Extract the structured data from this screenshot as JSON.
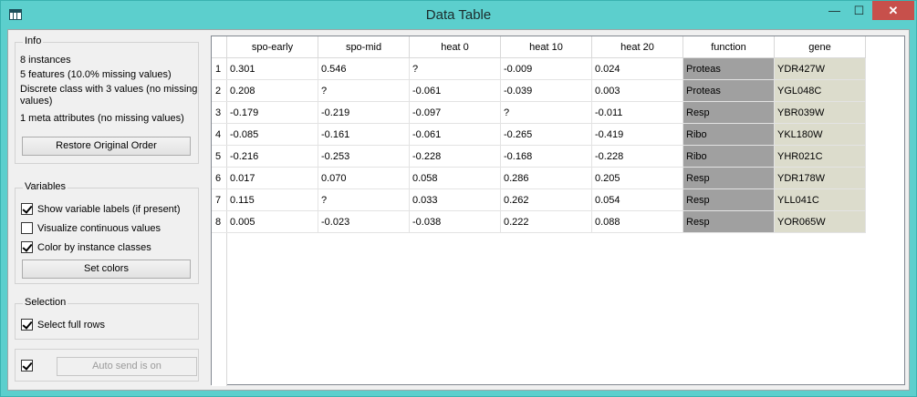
{
  "window": {
    "title": "Data Table",
    "minimize_glyph": "—",
    "maximize_glyph": "☐",
    "close_glyph": "✕"
  },
  "info": {
    "title": "Info",
    "lines": [
      "8 instances",
      "5 features (10.0% missing values)",
      "Discrete class with 3 values (no missing",
      "values)",
      "1 meta attributes (no missing values)"
    ],
    "restore_button": "Restore Original Order"
  },
  "variables": {
    "title": "Variables",
    "options": [
      {
        "label": "Show variable labels (if present)",
        "checked": true
      },
      {
        "label": "Visualize continuous values",
        "checked": false
      },
      {
        "label": "Color by instance classes",
        "checked": true
      }
    ],
    "set_colors_button": "Set colors"
  },
  "selection": {
    "title": "Selection",
    "select_full_rows": {
      "label": "Select full rows",
      "checked": true
    }
  },
  "autosend": {
    "checked": true,
    "button": "Auto send is on"
  },
  "table": {
    "columns": [
      "spo-early",
      "spo-mid",
      "heat 0",
      "heat 10",
      "heat 20",
      "function",
      "gene"
    ],
    "rows": [
      {
        "n": "1",
        "cells": [
          "0.301",
          "0.546",
          "?",
          "-0.009",
          "0.024",
          "Proteas",
          "YDR427W"
        ]
      },
      {
        "n": "2",
        "cells": [
          "0.208",
          "?",
          "-0.061",
          "-0.039",
          "0.003",
          "Proteas",
          "YGL048C"
        ]
      },
      {
        "n": "3",
        "cells": [
          "-0.179",
          "-0.219",
          "-0.097",
          "?",
          "-0.011",
          "Resp",
          "YBR039W"
        ]
      },
      {
        "n": "4",
        "cells": [
          "-0.085",
          "-0.161",
          "-0.061",
          "-0.265",
          "-0.419",
          "Ribo",
          "YKL180W"
        ]
      },
      {
        "n": "5",
        "cells": [
          "-0.216",
          "-0.253",
          "-0.228",
          "-0.168",
          "-0.228",
          "Ribo",
          "YHR021C"
        ]
      },
      {
        "n": "6",
        "cells": [
          "0.017",
          "0.070",
          "0.058",
          "0.286",
          "0.205",
          "Resp",
          "YDR178W"
        ]
      },
      {
        "n": "7",
        "cells": [
          "0.115",
          "?",
          "0.033",
          "0.262",
          "0.054",
          "Resp",
          "YLL041C"
        ]
      },
      {
        "n": "8",
        "cells": [
          "0.005",
          "-0.023",
          "-0.038",
          "0.222",
          "0.088",
          "Resp",
          "YOR065W"
        ]
      }
    ]
  }
}
